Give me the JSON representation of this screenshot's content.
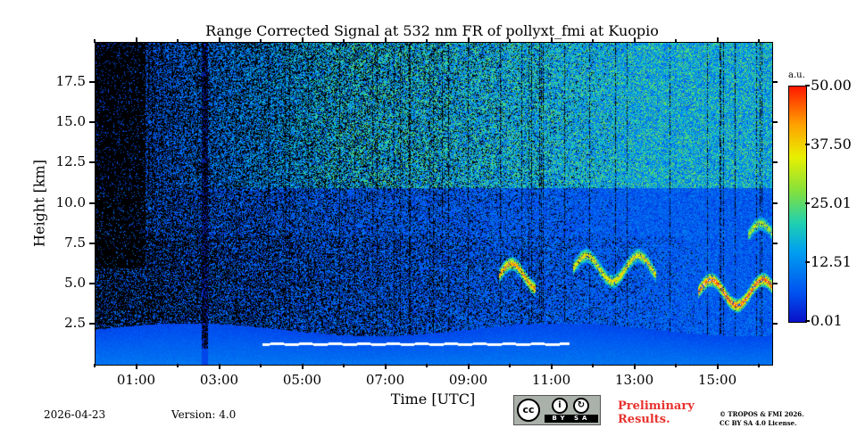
{
  "chart_data": {
    "type": "heatmap",
    "title": "Range Corrected Signal at 532 nm FR of pollyxt_fmi at Kuopio",
    "xlabel": "Time [UTC]",
    "ylabel": "Height [km]",
    "x_range_hours": [
      0.0,
      16.3
    ],
    "y_range_km": [
      0.0,
      20.0
    ],
    "x_ticks": [
      {
        "value": 1,
        "label": "01:00"
      },
      {
        "value": 3,
        "label": "03:00"
      },
      {
        "value": 5,
        "label": "05:00"
      },
      {
        "value": 7,
        "label": "07:00"
      },
      {
        "value": 9,
        "label": "09:00"
      },
      {
        "value": 11,
        "label": "11:00"
      },
      {
        "value": 13,
        "label": "13:00"
      },
      {
        "value": 15,
        "label": "15:00"
      }
    ],
    "y_ticks": [
      {
        "value": 2.5,
        "label": "2.5"
      },
      {
        "value": 5.0,
        "label": "5.0"
      },
      {
        "value": 7.5,
        "label": "7.5"
      },
      {
        "value": 10.0,
        "label": "10.0"
      },
      {
        "value": 12.5,
        "label": "12.5"
      },
      {
        "value": 15.0,
        "label": "15.0"
      },
      {
        "value": 17.5,
        "label": "17.5"
      }
    ],
    "colorbar": {
      "unit": "a.u.",
      "range": [
        0.01,
        50.0
      ],
      "ticks": [
        {
          "value": 50.0,
          "label": "50.00"
        },
        {
          "value": 37.5,
          "label": "37.50"
        },
        {
          "value": 25.01,
          "label": "25.01"
        },
        {
          "value": 12.51,
          "label": "12.51"
        },
        {
          "value": 0.01,
          "label": "0.01"
        }
      ],
      "colormap": "jet"
    },
    "features": [
      {
        "kind": "cloud_base_layer",
        "time_start": 4.0,
        "time_end": 11.4,
        "height_km": 1.3,
        "value": 50.0
      },
      {
        "kind": "cirrus_band",
        "time_start": 9.7,
        "time_end": 10.6,
        "height_km": 5.5,
        "value": 40.0
      },
      {
        "kind": "cirrus_band",
        "time_start": 11.5,
        "time_end": 13.5,
        "height_km": 6.0,
        "value": 35.0
      },
      {
        "kind": "cirrus_band",
        "time_start": 14.5,
        "time_end": 16.3,
        "height_km": 4.5,
        "value": 45.0
      },
      {
        "kind": "cirrus_band",
        "time_start": 15.7,
        "time_end": 16.3,
        "height_km": 8.0,
        "value": 30.0
      },
      {
        "kind": "boundary_layer_top",
        "time_start": 0.0,
        "time_end": 16.3,
        "height_km": 2.2,
        "value": 8.0
      }
    ]
  },
  "footer": {
    "date": "2026-04-23",
    "version": "Version: 4.0",
    "license_badge": {
      "icon": "cc-by-sa-icon",
      "left_text": "BY",
      "right_text": "SA"
    },
    "preliminary_line1": "Preliminary",
    "preliminary_line2": "Results.",
    "copyright_line1": "© TROPOS & FMI 2026.",
    "copyright_line2": "CC BY SA 4.0 License."
  },
  "colors": {
    "preliminary": "#e8322e",
    "background": "#ffffff",
    "no_signal": "#000000"
  }
}
